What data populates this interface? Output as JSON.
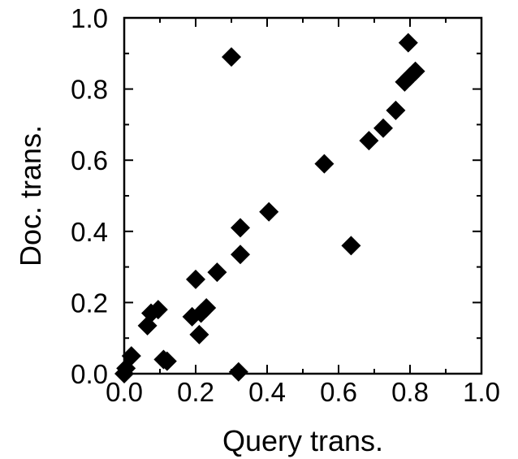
{
  "chart_data": {
    "type": "scatter",
    "title": "",
    "xlabel": "Query trans.",
    "ylabel": "Doc. trans.",
    "xlim": [
      0.0,
      1.0
    ],
    "ylim": [
      0.0,
      1.0
    ],
    "xticks": [
      "0.0",
      "0.2",
      "0.4",
      "0.6",
      "0.8",
      "1.0"
    ],
    "yticks": [
      "0.0",
      "0.2",
      "0.4",
      "0.6",
      "0.8",
      "1.0"
    ],
    "grid": false,
    "marker": "diamond",
    "marker_color": "#000000",
    "series": [
      {
        "points": [
          {
            "x": 0.0,
            "y": 0.0
          },
          {
            "x": 0.005,
            "y": 0.015
          },
          {
            "x": 0.02,
            "y": 0.05
          },
          {
            "x": 0.065,
            "y": 0.135
          },
          {
            "x": 0.075,
            "y": 0.17
          },
          {
            "x": 0.095,
            "y": 0.18
          },
          {
            "x": 0.11,
            "y": 0.04
          },
          {
            "x": 0.12,
            "y": 0.035
          },
          {
            "x": 0.19,
            "y": 0.16
          },
          {
            "x": 0.2,
            "y": 0.265
          },
          {
            "x": 0.21,
            "y": 0.11
          },
          {
            "x": 0.215,
            "y": 0.17
          },
          {
            "x": 0.23,
            "y": 0.185
          },
          {
            "x": 0.26,
            "y": 0.285
          },
          {
            "x": 0.3,
            "y": 0.89
          },
          {
            "x": 0.325,
            "y": 0.41
          },
          {
            "x": 0.325,
            "y": 0.335
          },
          {
            "x": 0.32,
            "y": 0.005
          },
          {
            "x": 0.405,
            "y": 0.455
          },
          {
            "x": 0.56,
            "y": 0.59
          },
          {
            "x": 0.635,
            "y": 0.36
          },
          {
            "x": 0.685,
            "y": 0.655
          },
          {
            "x": 0.725,
            "y": 0.69
          },
          {
            "x": 0.76,
            "y": 0.74
          },
          {
            "x": 0.785,
            "y": 0.82
          },
          {
            "x": 0.8,
            "y": 0.835
          },
          {
            "x": 0.815,
            "y": 0.85
          },
          {
            "x": 0.795,
            "y": 0.93
          }
        ]
      }
    ]
  }
}
